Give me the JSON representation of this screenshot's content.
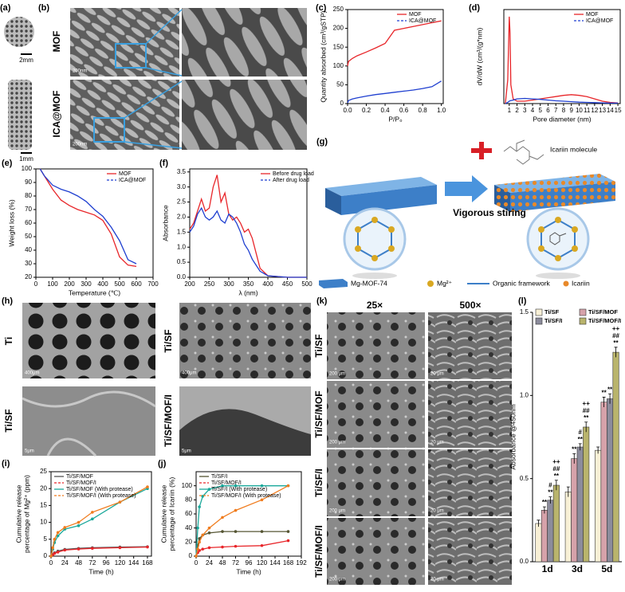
{
  "chart_data": [
    {
      "type": "line",
      "xlabel": "P/P₀",
      "ylabel": "Quantity absorbed (cm³/gSTP)",
      "x": [
        0.0,
        0.01,
        0.05,
        0.1,
        0.2,
        0.3,
        0.4,
        0.5,
        0.6,
        0.7,
        0.8,
        0.9,
        1.0
      ],
      "xlim": [
        0,
        1.02
      ],
      "xticks": [
        {
          "value": 0,
          "label": "0.0"
        },
        0.2,
        0.4,
        0.6,
        0.8,
        {
          "value": 1,
          "label": "1.0"
        }
      ],
      "ylim": [
        0,
        250
      ],
      "yticks": [
        0,
        50,
        100,
        150,
        200,
        250
      ],
      "legend": "upper right",
      "series": [
        {
          "name": "MOF",
          "color": "#e8262a",
          "values": [
            100,
            112,
            120,
            127,
            137,
            148,
            160,
            195,
            200,
            205,
            210,
            215,
            220
          ]
        },
        {
          "name": "ICA@MOF",
          "color": "#1f3fd0",
          "values": [
            2,
            8,
            12,
            15,
            20,
            24,
            27,
            30,
            33,
            36,
            40,
            45,
            60
          ]
        }
      ]
    },
    {
      "type": "line",
      "xlabel": "Pore diameter (nm)",
      "ylabel": "dV/dW (cm³/(g*nm)",
      "x": [
        0.5,
        0.8,
        1.0,
        1.1,
        1.2,
        1.5,
        2,
        3,
        4,
        5,
        6,
        7,
        8,
        9,
        10,
        11,
        12,
        13,
        14,
        15
      ],
      "xlim": [
        0.3,
        15.3
      ],
      "xticks": [
        1,
        2,
        3,
        4,
        5,
        6,
        7,
        8,
        9,
        10,
        11,
        12,
        13,
        14,
        15
      ],
      "ylim": [
        0,
        0.4
      ],
      "legend": "upper right",
      "series": [
        {
          "name": "MOF",
          "color": "#e8262a",
          "values": [
            0,
            0.1,
            0.37,
            0.3,
            0.08,
            0.02,
            0.01,
            0.01,
            0.015,
            0.02,
            0.025,
            0.03,
            0.035,
            0.038,
            0.035,
            0.03,
            0.02,
            0.01,
            0.005,
            0.003
          ]
        },
        {
          "name": "ICA@MOF",
          "color": "#1f3fd0",
          "values": [
            0,
            0.005,
            0.01,
            0.012,
            0.013,
            0.015,
            0.02,
            0.022,
            0.02,
            0.018,
            0.015,
            0.012,
            0.01,
            0.008,
            0.006,
            0.005,
            0.004,
            0.003,
            0.002,
            0.002
          ]
        }
      ]
    },
    {
      "type": "line",
      "xlabel": "Temperature (℃)",
      "ylabel": "Weight loss (%)",
      "x": [
        25,
        50,
        100,
        150,
        200,
        250,
        300,
        350,
        400,
        450,
        500,
        550,
        600
      ],
      "xlim": [
        0,
        700
      ],
      "xticks": [
        0,
        100,
        200,
        300,
        400,
        500,
        600,
        700
      ],
      "ylim": [
        20,
        100
      ],
      "yticks": [
        20,
        30,
        40,
        50,
        60,
        70,
        80,
        90,
        100
      ],
      "legend": "upper right",
      "series": [
        {
          "name": "MOF",
          "color": "#e8262a",
          "values": [
            100,
            95,
            85,
            77,
            73,
            70,
            68,
            66,
            62,
            52,
            35,
            29,
            28
          ]
        },
        {
          "name": "ICA@MOF",
          "color": "#1f3fd0",
          "values": [
            100,
            95,
            88,
            85,
            83,
            80,
            76,
            70,
            65,
            57,
            47,
            33,
            30
          ]
        }
      ]
    },
    {
      "type": "line",
      "xlabel": "λ (nm)",
      "ylabel": "Absorbance",
      "x": [
        200,
        210,
        220,
        230,
        240,
        250,
        260,
        270,
        280,
        290,
        300,
        310,
        320,
        330,
        340,
        350,
        360,
        370,
        380,
        400,
        450,
        500
      ],
      "xlim": [
        200,
        500
      ],
      "xticks": [
        200,
        250,
        300,
        350,
        400,
        450,
        500
      ],
      "ylim": [
        0,
        3.6
      ],
      "yticks": [
        {
          "value": 0,
          "label": "0.0"
        },
        0.5,
        {
          "value": 1,
          "label": "1.0"
        },
        1.5,
        {
          "value": 2,
          "label": "2.0"
        },
        2.5,
        {
          "value": 3,
          "label": "3.0"
        },
        3.5
      ],
      "legend": "upper right",
      "series": [
        {
          "name": "Before drug load",
          "color": "#e8262a",
          "values": [
            1.6,
            1.8,
            2.2,
            2.6,
            2.2,
            2.3,
            3.0,
            3.4,
            2.5,
            2.8,
            2.1,
            1.9,
            2.0,
            1.8,
            1.5,
            1.6,
            1.3,
            0.8,
            0.3,
            0.05,
            0,
            0
          ]
        },
        {
          "name": "After drug load",
          "color": "#1f3fd0",
          "values": [
            1.5,
            1.7,
            2.1,
            2.3,
            2.0,
            1.9,
            2.0,
            2.2,
            1.9,
            1.8,
            2.1,
            2.0,
            1.8,
            1.5,
            1.1,
            0.9,
            0.6,
            0.4,
            0.2,
            0.05,
            0,
            0
          ]
        }
      ]
    },
    {
      "type": "line",
      "markers": true,
      "xlabel": "Time (h)",
      "ylabel": [
        "Cumulative release",
        "percentage of Mg²⁺ (ppm)"
      ],
      "x": [
        0,
        3,
        6,
        12,
        24,
        48,
        72,
        120,
        168
      ],
      "xlim": [
        0,
        175
      ],
      "xticks": [
        0,
        24,
        48,
        72,
        96,
        120,
        144,
        168
      ],
      "ylim": [
        0,
        25
      ],
      "yticks": [
        0,
        5,
        10,
        15,
        20,
        25
      ],
      "legend": "upper left",
      "series": [
        {
          "name": "Ti/SF/MOF",
          "color": "#555555",
          "values": [
            0,
            0.5,
            1,
            1.5,
            2,
            2.3,
            2.5,
            2.7,
            2.8
          ]
        },
        {
          "name": "Ti/SF/MOF/I",
          "color": "#e8262a",
          "values": [
            0,
            0.4,
            0.8,
            1.2,
            1.8,
            2.1,
            2.3,
            2.5,
            2.7
          ]
        },
        {
          "name": "Ti/SF/MOF (With protease)",
          "color": "#1aa89a",
          "values": [
            0,
            2,
            4,
            6,
            8,
            9,
            11,
            16,
            20
          ]
        },
        {
          "name": "Ti/SF/MOF/I (With protease)",
          "color": "#f07c1e",
          "values": [
            0,
            2.5,
            5,
            7,
            8.5,
            10,
            13,
            16,
            20.5
          ]
        }
      ]
    },
    {
      "type": "line",
      "markers": true,
      "xlabel": "Time (h)",
      "ylabel": [
        "Cumulative release",
        "percentage of Icariin (%)"
      ],
      "x": [
        0,
        3,
        6,
        12,
        24,
        48,
        72,
        120,
        168
      ],
      "xlim": [
        0,
        192
      ],
      "xticks": [
        0,
        24,
        48,
        72,
        96,
        120,
        144,
        168,
        192
      ],
      "ylim": [
        0,
        120
      ],
      "yticks": [
        0,
        20,
        40,
        60,
        80,
        100
      ],
      "legend": "upper left",
      "series": [
        {
          "name": "Ti/SF/I",
          "color": "#555533",
          "values": [
            0,
            15,
            25,
            30,
            33,
            35,
            35,
            35,
            35
          ]
        },
        {
          "name": "Ti/SF/MOF/I",
          "color": "#e8262a",
          "values": [
            0,
            5,
            8,
            10,
            12,
            13,
            14,
            15,
            22
          ]
        },
        {
          "name": "Ti/SF/I (With protease)",
          "color": "#1aa89a",
          "values": [
            0,
            40,
            70,
            85,
            95,
            100,
            100,
            100,
            100
          ]
        },
        {
          "name": "Ti/SF/MOF/I (With protease)",
          "color": "#f07c1e",
          "values": [
            0,
            10,
            20,
            30,
            40,
            55,
            65,
            80,
            100
          ]
        }
      ]
    },
    {
      "type": "bar",
      "ylabel": "Absorbance @450nm",
      "categories": [
        "1d",
        "3d",
        "5d"
      ],
      "ylim": [
        0,
        1.5
      ],
      "yticks": [
        {
          "value": 0,
          "label": "0.0"
        },
        0.5,
        {
          "value": 1,
          "label": "1.0"
        },
        1.5
      ],
      "legend": "upper left",
      "series": [
        {
          "name": "Ti/SF",
          "color": "#f8f0d6",
          "values": [
            0.23,
            0.42,
            0.67
          ],
          "errors": [
            0.02,
            0.03,
            0.02
          ]
        },
        {
          "name": "Ti/SF/MOF",
          "color": "#d6a2aa",
          "values": [
            0.31,
            0.62,
            0.96
          ],
          "errors": [
            0.02,
            0.03,
            0.03
          ],
          "significance": [
            [
              "**"
            ],
            [
              "**"
            ],
            [
              "**"
            ]
          ]
        },
        {
          "name": "Ti/SF/I",
          "color": "#8c8c9c",
          "values": [
            0.37,
            0.69,
            0.98
          ],
          "errors": [
            0.02,
            0.02,
            0.03
          ],
          "significance": [
            [
              "#",
              "**"
            ],
            [
              "#",
              "**"
            ],
            [
              "**"
            ]
          ]
        },
        {
          "name": "Ti/SF/MOF/I",
          "color": "#b9b46c",
          "values": [
            0.46,
            0.81,
            1.26
          ],
          "errors": [
            0.03,
            0.03,
            0.03
          ],
          "significance": [
            [
              "++",
              "##",
              "**"
            ],
            [
              "++",
              "##",
              "**"
            ],
            [
              "++",
              "##",
              "**"
            ]
          ]
        }
      ]
    }
  ],
  "figure": {
    "panel_labels": [
      "(a)",
      "(b)",
      "(c)",
      "(d)",
      "(e)",
      "(f)",
      "(g)",
      "(h)",
      "(i)",
      "(j)",
      "(k)",
      "(l)"
    ],
    "a": {
      "scale_bars": [
        "2mm",
        "1mm"
      ]
    },
    "b": {
      "rows": [
        "MOF",
        "ICA@MOF"
      ],
      "scale_bars": [
        "200nm",
        "200nm"
      ]
    },
    "g": {
      "molecule": "Icariin molecule",
      "process": "Vigorous stiring",
      "legend": [
        "Mg-MOF-74",
        "Mg²⁺",
        "Organic framework",
        "Icariin"
      ]
    },
    "h": {
      "labels": [
        "Ti",
        "Ti/SF",
        "Ti/SF",
        "Ti/SF/MOF/I"
      ],
      "scale_bars": [
        "400μm",
        "400μm",
        "5μm",
        "5μm"
      ]
    },
    "k": {
      "columns": [
        "25×",
        "500×"
      ],
      "rows": [
        "Ti/SF",
        "Ti/SF/MOF",
        "Ti/SF/I",
        "Ti/SF/MOF/I"
      ],
      "scale_bars": [
        "200 μm",
        "20 μm"
      ]
    }
  }
}
